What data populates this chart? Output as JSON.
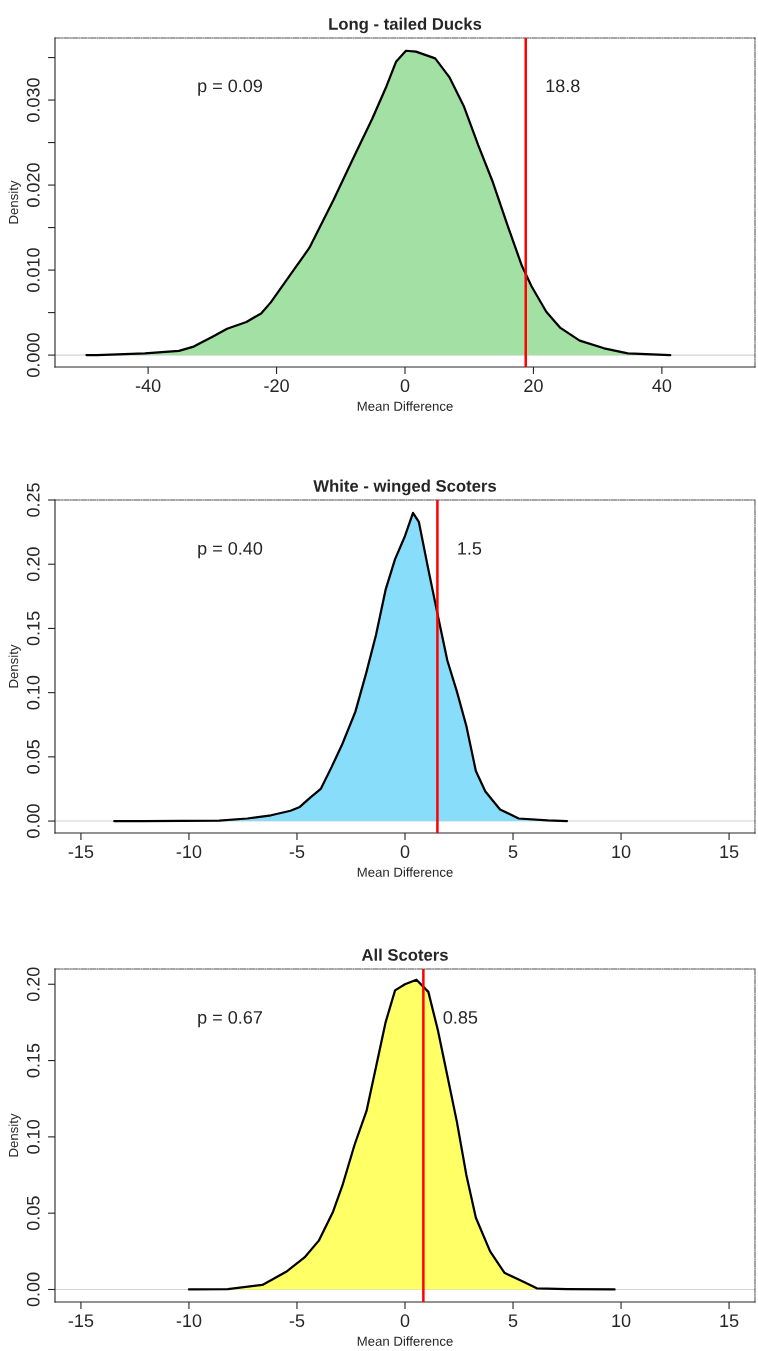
{
  "chart_data": [
    {
      "type": "area",
      "title": "Long - tailed Ducks",
      "xlabel": "Mean Difference",
      "ylabel": "Density",
      "annotations": [
        "p = 0.09"
      ],
      "grid": false,
      "xlim": [
        -54.5,
        54.5
      ],
      "xticks": [
        -40,
        -20,
        0,
        20,
        40
      ],
      "ylim": [
        -0.0014,
        0.0373
      ],
      "yticks": [
        {
          "value": 0,
          "label": "0.000"
        },
        {
          "value": 0.005,
          "label": null
        },
        {
          "value": 0.01,
          "label": "0.010"
        },
        {
          "value": 0.015,
          "label": null
        },
        {
          "value": 0.02,
          "label": "0.020"
        },
        {
          "value": 0.025,
          "label": null
        },
        {
          "value": 0.03,
          "label": "0.030"
        },
        {
          "value": 0.035,
          "label": null
        }
      ],
      "ref_lines": [
        {
          "axis": "y",
          "value": 0,
          "label": null,
          "color": "#d3d3d3"
        },
        {
          "axis": "x",
          "value": 18.8,
          "label": "18.8",
          "color": "#ff0000"
        }
      ],
      "series": [
        {
          "color": "#a3e0a3",
          "x": [
            -49.6,
            -48,
            -40.5,
            -35.2,
            -32.9,
            -29.9,
            -27.7,
            -24.7,
            -22.4,
            -20.9,
            -17.9,
            -14.9,
            -11.1,
            -8.1,
            -5.1,
            -2.9,
            -1.4,
            0.15,
            1.7,
            4.7,
            6.9,
            9.2,
            11.4,
            13.7,
            15.9,
            18.2,
            19.7,
            22.0,
            24.2,
            27.2,
            31.0,
            34.7,
            41.3
          ],
          "values": [
            0,
            0,
            0.0002,
            0.0005,
            0.001,
            0.0022,
            0.0031,
            0.0039,
            0.0049,
            0.0062,
            0.0094,
            0.0126,
            0.0183,
            0.0231,
            0.0278,
            0.0316,
            0.0345,
            0.0358,
            0.0357,
            0.0349,
            0.0327,
            0.0292,
            0.0247,
            0.0203,
            0.0154,
            0.0105,
            0.0081,
            0.0051,
            0.0032,
            0.0017,
            0.0008,
            0.0002,
            0
          ]
        }
      ]
    },
    {
      "type": "area",
      "title": "White - winged Scoters",
      "xlabel": "Mean Difference",
      "ylabel": "Density",
      "annotations": [
        "p = 0.40"
      ],
      "grid": false,
      "xlim": [
        -16.2,
        16.2
      ],
      "xticks": [
        -15,
        -10,
        -5,
        0,
        5,
        10,
        15
      ],
      "ylim": [
        -0.0093,
        0.25
      ],
      "yticks": [
        {
          "value": 0,
          "label": "0.00"
        },
        {
          "value": 0.05,
          "label": "0.05"
        },
        {
          "value": 0.1,
          "label": "0.10"
        },
        {
          "value": 0.15,
          "label": "0.15"
        },
        {
          "value": 0.2,
          "label": "0.20"
        },
        {
          "value": 0.25,
          "label": "0.25"
        }
      ],
      "ref_lines": [
        {
          "axis": "y",
          "value": 0,
          "label": null,
          "color": "#d3d3d3"
        },
        {
          "axis": "x",
          "value": 1.5,
          "label": "1.5",
          "color": "#ff0000"
        }
      ],
      "series": [
        {
          "color": "#87ddfa",
          "x": [
            -13.46,
            -12.1,
            -8.6,
            -7.3,
            -6.2,
            -5.3,
            -4.87,
            -4.4,
            -3.9,
            -3.4,
            -2.9,
            -2.3,
            -1.8,
            -1.34,
            -0.9,
            -0.46,
            0,
            0.37,
            0.64,
            1.08,
            1.52,
            1.96,
            2.4,
            2.84,
            3.28,
            3.72,
            4.4,
            5.26,
            6.6,
            7.5
          ],
          "values": [
            0,
            0,
            0.0004,
            0.002,
            0.0045,
            0.008,
            0.011,
            0.018,
            0.025,
            0.042,
            0.06,
            0.085,
            0.115,
            0.145,
            0.18,
            0.204,
            0.222,
            0.24,
            0.233,
            0.196,
            0.16,
            0.125,
            0.101,
            0.074,
            0.039,
            0.023,
            0.009,
            0.002,
            0.0005,
            0
          ]
        }
      ]
    },
    {
      "type": "area",
      "title": "All Scoters",
      "xlabel": "Mean Difference",
      "ylabel": "Density",
      "annotations": [
        "p = 0.67"
      ],
      "grid": false,
      "xlim": [
        -16.2,
        16.2
      ],
      "xticks": [
        -15,
        -10,
        -5,
        0,
        5,
        10,
        15
      ],
      "ylim": [
        -0.0082,
        0.21
      ],
      "yticks": [
        {
          "value": 0,
          "label": "0.00"
        },
        {
          "value": 0.05,
          "label": "0.05"
        },
        {
          "value": 0.1,
          "label": "0.10"
        },
        {
          "value": 0.15,
          "label": "0.15"
        },
        {
          "value": 0.2,
          "label": "0.20"
        }
      ],
      "ref_lines": [
        {
          "axis": "y",
          "value": 0,
          "label": null,
          "color": "#d3d3d3"
        },
        {
          "axis": "x",
          "value": 0.85,
          "label": "0.85",
          "color": "#ff0000"
        }
      ],
      "series": [
        {
          "color": "#ffff66",
          "x": [
            -10.0,
            -8.2,
            -6.6,
            -5.5,
            -4.65,
            -3.99,
            -3.33,
            -2.9,
            -2.33,
            -1.78,
            -1.34,
            -0.9,
            -0.46,
            0,
            0.53,
            1.08,
            1.52,
            1.96,
            2.4,
            2.84,
            3.28,
            3.94,
            4.6,
            5.48,
            6.1,
            7.5,
            9.7
          ],
          "values": [
            0,
            0.0003,
            0.003,
            0.0116,
            0.021,
            0.032,
            0.051,
            0.068,
            0.095,
            0.117,
            0.146,
            0.175,
            0.196,
            0.2,
            0.203,
            0.195,
            0.17,
            0.14,
            0.11,
            0.075,
            0.047,
            0.025,
            0.011,
            0.005,
            0.0008,
            0.0003,
            0
          ]
        }
      ]
    }
  ]
}
